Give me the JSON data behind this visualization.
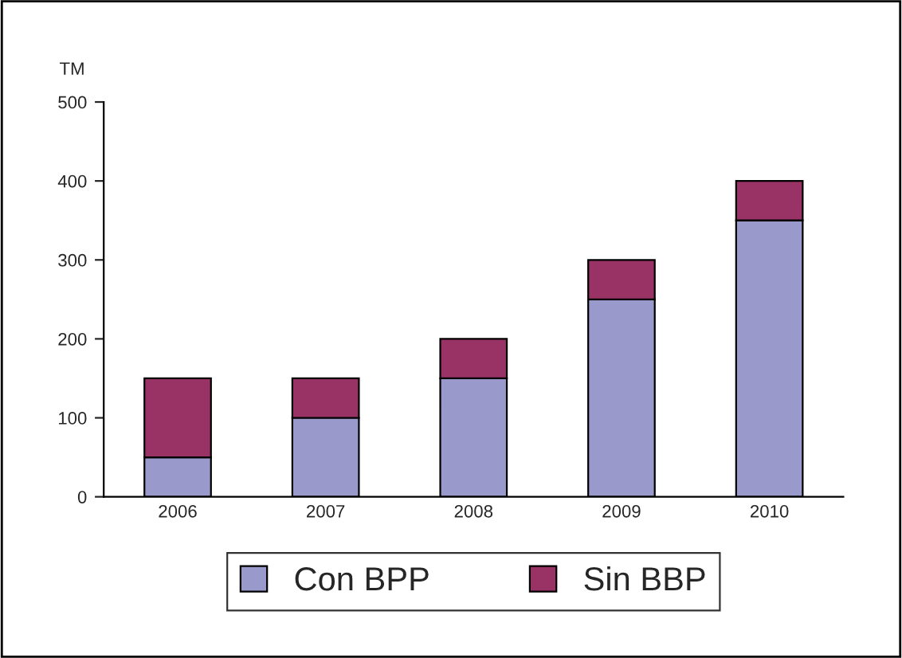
{
  "chart_data": {
    "type": "bar",
    "stacked": true,
    "ylabel": "TM",
    "categories": [
      "2006",
      "2007",
      "2008",
      "2009",
      "2010"
    ],
    "series": [
      {
        "name": "Con BPP",
        "color": "#9999cc",
        "values": [
          50,
          100,
          150,
          250,
          350
        ]
      },
      {
        "name": "Sin BBP",
        "color": "#993366",
        "values": [
          100,
          50,
          50,
          50,
          50
        ]
      }
    ],
    "ylim": [
      0,
      500
    ],
    "yticks": [
      0,
      100,
      200,
      300,
      400,
      500
    ],
    "grid": false,
    "legend": "bottom"
  }
}
